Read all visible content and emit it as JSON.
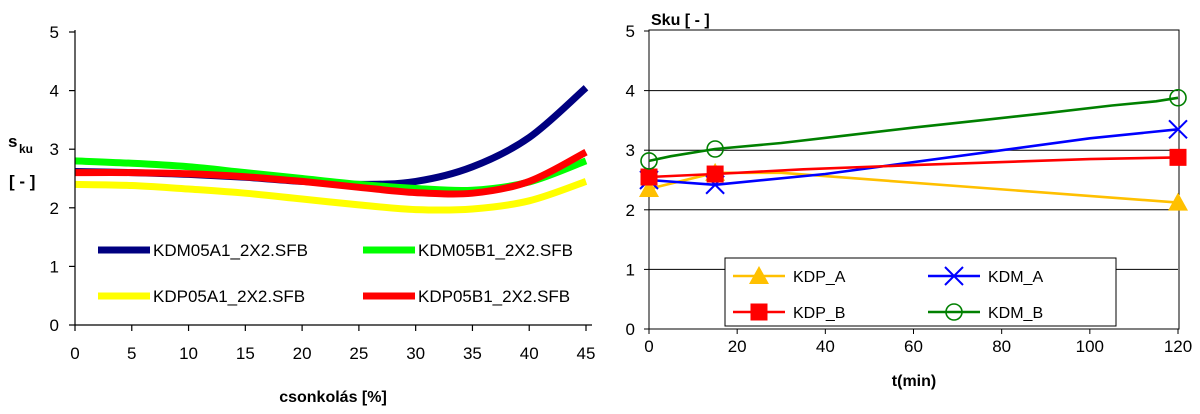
{
  "chart_data": [
    {
      "type": "line",
      "title": "",
      "xlabel": "csonkolás [%]",
      "ylabel_main": "s",
      "ylabel_sub": "ku",
      "ylabel_unit": "[ - ]",
      "xlim": [
        0,
        45
      ],
      "ylim": [
        0,
        5
      ],
      "xticks": [
        0,
        5,
        10,
        15,
        20,
        25,
        30,
        35,
        40,
        45
      ],
      "yticks": [
        0,
        1,
        2,
        3,
        4,
        5
      ],
      "grid": false,
      "legend_position": "bottom-inside",
      "x": [
        0,
        5,
        10,
        15,
        20,
        25,
        30,
        35,
        40,
        45
      ],
      "series": [
        {
          "name": "KDM05A1_2X2.SFB",
          "color": "#000080",
          "values": [
            2.62,
            2.6,
            2.57,
            2.52,
            2.45,
            2.4,
            2.45,
            2.7,
            3.2,
            4.05
          ]
        },
        {
          "name": "KDM05B1_2X2.SFB",
          "color": "#00FF00",
          "values": [
            2.8,
            2.76,
            2.7,
            2.6,
            2.5,
            2.4,
            2.33,
            2.3,
            2.44,
            2.8
          ]
        },
        {
          "name": "KDP05A1_2X2.SFB",
          "color": "#FFFF00",
          "values": [
            2.4,
            2.38,
            2.32,
            2.25,
            2.15,
            2.05,
            1.97,
            1.98,
            2.12,
            2.45
          ]
        },
        {
          "name": "KDP05B1_2X2.SFB",
          "color": "#FF0000",
          "values": [
            2.6,
            2.6,
            2.58,
            2.53,
            2.45,
            2.35,
            2.26,
            2.25,
            2.45,
            2.95
          ]
        }
      ]
    },
    {
      "type": "line",
      "title": "",
      "xlabel": "t(min)",
      "ylabel": "Sku [ - ]",
      "xlim": [
        0,
        120
      ],
      "ylim": [
        0,
        5
      ],
      "xticks": [
        0,
        20,
        40,
        60,
        80,
        100,
        120
      ],
      "yticks": [
        0,
        1,
        2,
        3,
        4,
        5
      ],
      "grid": true,
      "legend_position": "bottom-inside",
      "series": [
        {
          "name": "KDP_A",
          "color": "#FFC000",
          "marker": "triangle",
          "x": [
            0,
            15,
            120
          ],
          "values": [
            2.35,
            2.62,
            2.12
          ],
          "line_x": [
            0,
            15,
            30,
            120
          ],
          "line_y": [
            2.35,
            2.62,
            2.62,
            2.12
          ]
        },
        {
          "name": "KDM_A",
          "color": "#0000FF",
          "marker": "x",
          "x": [
            0,
            15,
            120
          ],
          "values": [
            2.5,
            2.42,
            3.35
          ],
          "line_x": [
            0,
            15,
            40,
            100,
            120
          ],
          "line_y": [
            2.5,
            2.42,
            2.6,
            3.2,
            3.35
          ]
        },
        {
          "name": "KDP_B",
          "color": "#FF0000",
          "marker": "square",
          "x": [
            0,
            15,
            120
          ],
          "values": [
            2.55,
            2.6,
            2.88
          ],
          "line_x": [
            0,
            15,
            35,
            60,
            100,
            120
          ],
          "line_y": [
            2.55,
            2.6,
            2.68,
            2.75,
            2.85,
            2.88
          ]
        },
        {
          "name": "KDM_B",
          "color": "#008000",
          "marker": "circle",
          "x": [
            0,
            15,
            120
          ],
          "values": [
            2.82,
            3.02,
            3.88
          ],
          "line_x": [
            0,
            5,
            15,
            30,
            45,
            60,
            75,
            90,
            105,
            115,
            120
          ],
          "line_y": [
            2.82,
            2.9,
            3.02,
            3.12,
            3.25,
            3.38,
            3.5,
            3.62,
            3.75,
            3.82,
            3.88
          ]
        }
      ]
    }
  ]
}
